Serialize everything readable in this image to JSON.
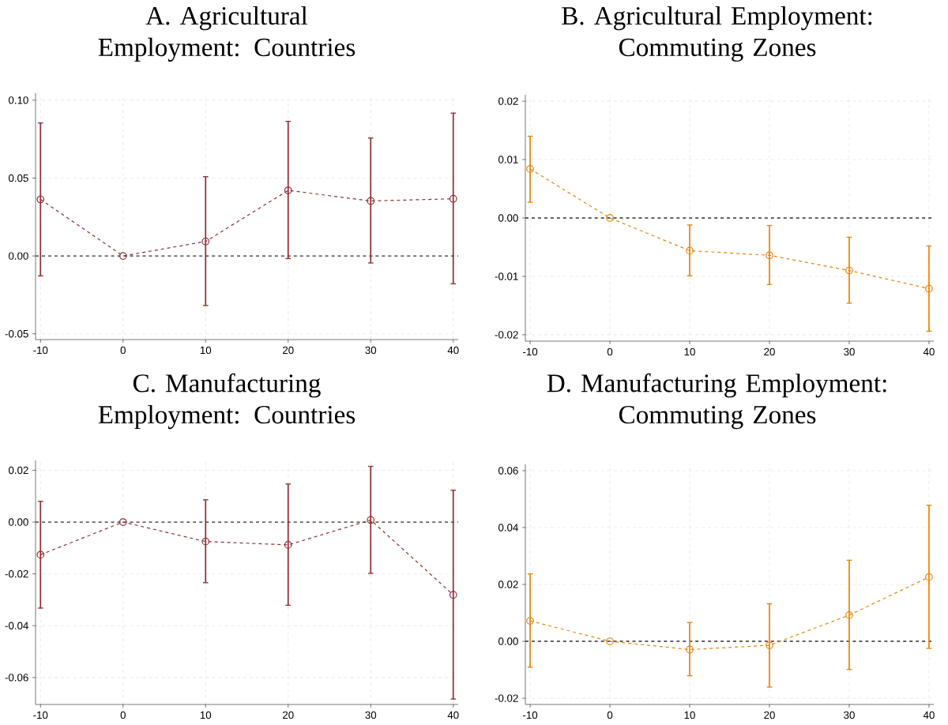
{
  "chart_data": [
    {
      "type": "line",
      "title": "A. Agricultural Employment: Countries",
      "color": "#903035",
      "marker": "circle",
      "line_style": "dashed",
      "grid": true,
      "x": [
        -10,
        0,
        10,
        20,
        30,
        40
      ],
      "values": [
        0.0363,
        0,
        0.0093,
        0.0421,
        0.0353,
        0.0367
      ],
      "errors": [
        [
          -0.0128,
          0.0854
        ],
        null,
        [
          -0.0318,
          0.0509
        ],
        [
          -0.0017,
          0.0864
        ],
        [
          -0.0045,
          0.0757
        ],
        [
          -0.0179,
          0.0917
        ]
      ],
      "xlim": [
        -10.6,
        40.6
      ],
      "ylim": [
        -0.0537,
        0.1045
      ],
      "xticks": [
        -10,
        0,
        10,
        20,
        30,
        40
      ],
      "yticks": [
        {
          "value": -0.05,
          "label": "-0.05"
        },
        {
          "value": 0,
          "label": "0.00"
        },
        {
          "value": 0.05,
          "label": "0.05"
        },
        {
          "value": 0.1,
          "label": "0.10"
        }
      ],
      "ref_lines": [
        {
          "axis": "y",
          "value": 0,
          "color": "#333333",
          "line_style": "dashed"
        }
      ]
    },
    {
      "type": "line",
      "title": "B. Agricultural Employment: Commuting Zones",
      "color": "#e8850c",
      "marker": "circle",
      "line_style": "dashed",
      "grid": true,
      "x": [
        -10,
        0,
        10,
        20,
        30,
        40
      ],
      "values": [
        0.0084,
        0,
        -0.0056,
        -0.0064,
        -0.009,
        -0.0121
      ],
      "errors": [
        [
          0.0027,
          0.014
        ],
        null,
        [
          -0.0099,
          -0.0012
        ],
        [
          -0.0114,
          -0.0013
        ],
        [
          -0.0146,
          -0.0033
        ],
        [
          -0.0194,
          -0.0048
        ]
      ],
      "xlim": [
        -10.6,
        40.6
      ],
      "ylim": [
        -0.0211,
        0.0211
      ],
      "xticks": [
        -10,
        0,
        10,
        20,
        30,
        40
      ],
      "yticks": [
        {
          "value": -0.02,
          "label": "-0.02"
        },
        {
          "value": -0.01,
          "label": "-0.01"
        },
        {
          "value": 0,
          "label": "0.00"
        },
        {
          "value": 0.01,
          "label": "0.01"
        },
        {
          "value": 0.02,
          "label": "0.02"
        }
      ],
      "ref_lines": [
        {
          "axis": "y",
          "value": 0,
          "color": "#333333",
          "line_style": "dashed"
        }
      ]
    },
    {
      "type": "line",
      "title": "C. Manufacturing Employment: Countries",
      "color": "#903035",
      "marker": "circle",
      "line_style": "dashed",
      "grid": true,
      "x": [
        -10,
        0,
        10,
        20,
        30,
        40
      ],
      "values": [
        -0.0126,
        0,
        -0.0075,
        -0.0088,
        0.0008,
        -0.0281
      ],
      "errors": [
        [
          -0.0332,
          0.008
        ],
        null,
        [
          -0.0234,
          0.0086
        ],
        [
          -0.0321,
          0.0147
        ],
        [
          -0.0198,
          0.0215
        ],
        [
          -0.0683,
          0.0123
        ]
      ],
      "xlim": [
        -10.6,
        40.6
      ],
      "ylim": [
        -0.0704,
        0.0238
      ],
      "xticks": [
        -10,
        0,
        10,
        20,
        30,
        40
      ],
      "yticks": [
        {
          "value": -0.06,
          "label": "-0.06"
        },
        {
          "value": -0.04,
          "label": "-0.04"
        },
        {
          "value": -0.02,
          "label": "-0.02"
        },
        {
          "value": 0,
          "label": "0.00"
        },
        {
          "value": 0.02,
          "label": "0.02"
        }
      ],
      "ref_lines": [
        {
          "axis": "y",
          "value": 0,
          "color": "#333333",
          "line_style": "dashed"
        }
      ]
    },
    {
      "type": "line",
      "title": "D. Manufacturing Employment: Commuting Zones",
      "color": "#e8850c",
      "marker": "circle",
      "line_style": "dashed",
      "grid": true,
      "x": [
        -10,
        0,
        10,
        20,
        30,
        40
      ],
      "values": [
        0.0072,
        0,
        -0.0029,
        -0.0014,
        0.0092,
        0.0226
      ],
      "errors": [
        [
          -0.0091,
          0.0237
        ],
        null,
        [
          -0.0121,
          0.0066
        ],
        [
          -0.0161,
          0.0132
        ],
        [
          -0.0099,
          0.0285
        ],
        [
          -0.0025,
          0.0478
        ]
      ],
      "xlim": [
        -10.6,
        40.6
      ],
      "ylim": [
        -0.0222,
        0.0622
      ],
      "xticks": [
        -10,
        0,
        10,
        20,
        30,
        40
      ],
      "yticks": [
        {
          "value": -0.02,
          "label": "-0.02"
        },
        {
          "value": 0,
          "label": "0.00"
        },
        {
          "value": 0.02,
          "label": "0.02"
        },
        {
          "value": 0.04,
          "label": "0.04"
        },
        {
          "value": 0.06,
          "label": "0.06"
        }
      ],
      "ref_lines": [
        {
          "axis": "y",
          "value": 0,
          "color": "#333333",
          "line_style": "dashed"
        }
      ]
    }
  ]
}
